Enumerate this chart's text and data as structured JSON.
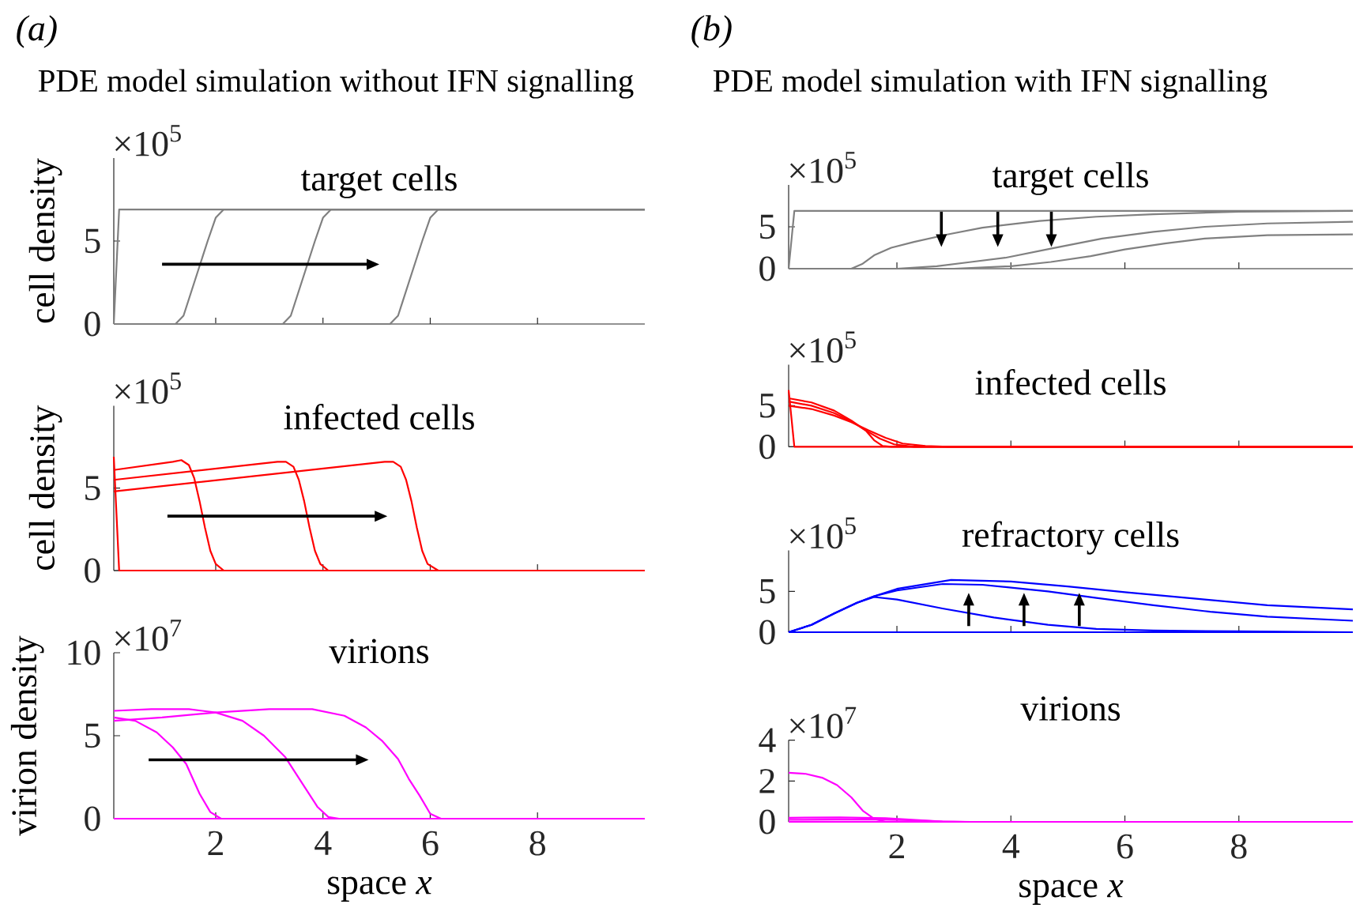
{
  "chart_data": [
    {
      "type": "line",
      "title": "target cells",
      "ylabel": "cell density",
      "annotations": [
        "×10$^{5}$",
        "(a)",
        "PDE model simulation without IFN signalling"
      ],
      "xlim": [
        0.1,
        10
      ],
      "ylim": [
        0,
        10
      ],
      "xticks": [
        2,
        4,
        6,
        8
      ],
      "yticks": [
        0,
        5
      ],
      "tick_labels": "y",
      "series": [
        {
          "color": "#808080",
          "x": [
            0.1,
            0.2,
            10
          ],
          "values": [
            0,
            6.9,
            6.9
          ]
        },
        {
          "color": "#808080",
          "x": [
            0.1,
            1.25,
            1.4,
            1.55,
            1.7,
            1.85,
            2.0,
            2.15,
            10
          ],
          "values": [
            0,
            0,
            0.5,
            2.0,
            3.5,
            5.0,
            6.4,
            6.9,
            6.9
          ]
        },
        {
          "color": "#808080",
          "x": [
            0.1,
            3.25,
            3.4,
            3.55,
            3.7,
            3.85,
            4.0,
            4.15,
            10
          ],
          "values": [
            0,
            0,
            0.5,
            2.0,
            3.5,
            5.0,
            6.4,
            6.9,
            6.9
          ]
        },
        {
          "color": "#808080",
          "x": [
            0.1,
            5.25,
            5.4,
            5.55,
            5.7,
            5.85,
            6.0,
            6.15,
            10
          ],
          "values": [
            0,
            0,
            0.5,
            2.0,
            3.5,
            5.0,
            6.4,
            6.9,
            6.9
          ]
        }
      ]
    },
    {
      "type": "line",
      "title": "infected cells",
      "ylabel": "cell density",
      "annotations": [
        "×10$^{5}$"
      ],
      "xlim": [
        0.1,
        10
      ],
      "ylim": [
        0,
        10
      ],
      "xticks": [
        2,
        4,
        6,
        8
      ],
      "yticks": [
        0,
        5
      ],
      "tick_labels": "y",
      "series": [
        {
          "color": "#ff0000",
          "x": [
            0.1,
            0.2,
            10
          ],
          "values": [
            6.9,
            0,
            0
          ]
        },
        {
          "color": "#ff0000",
          "x": [
            0.1,
            1.2,
            1.36,
            1.5,
            1.6,
            1.7,
            1.8,
            1.9,
            2.0,
            2.15,
            10
          ],
          "values": [
            6.1,
            6.6,
            6.7,
            6.4,
            5.6,
            4.2,
            2.6,
            1.2,
            0.4,
            0,
            0
          ]
        },
        {
          "color": "#ff0000",
          "x": [
            0.1,
            3.15,
            3.31,
            3.45,
            3.55,
            3.65,
            3.75,
            3.85,
            3.95,
            4.1,
            10
          ],
          "values": [
            5.5,
            6.6,
            6.6,
            6.3,
            5.5,
            4.2,
            2.6,
            1.2,
            0.4,
            0,
            0
          ]
        },
        {
          "color": "#ff0000",
          "x": [
            0.1,
            5.15,
            5.31,
            5.45,
            5.55,
            5.65,
            5.75,
            5.85,
            5.95,
            6.15,
            10
          ],
          "values": [
            4.8,
            6.6,
            6.6,
            6.3,
            5.5,
            4.2,
            2.6,
            1.2,
            0.4,
            0,
            0
          ]
        }
      ]
    },
    {
      "type": "line",
      "title": "virions",
      "xlabel": "space *x*",
      "ylabel": "virion density",
      "annotations": [
        "×10$^{7}$"
      ],
      "xlim": [
        0.1,
        10
      ],
      "ylim": [
        0,
        10
      ],
      "xticks": [
        2,
        4,
        6,
        8
      ],
      "yticks": [
        0,
        5,
        10
      ],
      "series": [
        {
          "color": "#ff00ff",
          "x": [
            0.1,
            10
          ],
          "values": [
            0,
            0
          ]
        },
        {
          "color": "#ff00ff",
          "x": [
            0.1,
            0.5,
            0.9,
            1.2,
            1.45,
            1.7,
            1.9,
            2.1,
            10
          ],
          "values": [
            6.1,
            5.9,
            5.2,
            4.3,
            3.3,
            1.5,
            0.4,
            0,
            0
          ]
        },
        {
          "color": "#ff00ff",
          "x": [
            0.1,
            0.8,
            1.5,
            2.0,
            2.5,
            2.9,
            3.3,
            3.6,
            3.9,
            4.1,
            4.3,
            10
          ],
          "values": [
            6.5,
            6.6,
            6.6,
            6.4,
            5.9,
            5.0,
            3.7,
            2.2,
            0.7,
            0.1,
            0,
            0
          ]
        },
        {
          "color": "#ff00ff",
          "x": [
            0.1,
            1,
            2,
            3,
            3.8,
            4.4,
            4.8,
            5.1,
            5.4,
            5.6,
            5.8,
            6.0,
            6.2,
            10
          ],
          "values": [
            5.9,
            6.1,
            6.4,
            6.6,
            6.6,
            6.2,
            5.5,
            4.7,
            3.6,
            2.4,
            1.4,
            0.3,
            0,
            0
          ]
        }
      ]
    },
    {
      "type": "line",
      "title": "target cells",
      "annotations": [
        "×10$^{5}$",
        "(b)",
        "PDE model simulation with IFN signalling"
      ],
      "xlim": [
        0.1,
        10
      ],
      "ylim": [
        0,
        10
      ],
      "xticks": [
        2,
        4,
        6,
        8
      ],
      "yticks": [
        0,
        5
      ],
      "tick_labels": "y",
      "series": [
        {
          "color": "#808080",
          "x": [
            0.1,
            0.2,
            10
          ],
          "values": [
            0,
            6.9,
            6.9
          ]
        },
        {
          "color": "#808080",
          "x": [
            0.1,
            1.2,
            1.4,
            1.6,
            1.9,
            2.3,
            2.9,
            3.5,
            4.5,
            5.5,
            6.5,
            8,
            10
          ],
          "values": [
            0,
            0,
            0.6,
            1.6,
            2.5,
            3.2,
            4.1,
            4.9,
            5.7,
            6.2,
            6.5,
            6.8,
            6.9
          ]
        },
        {
          "color": "#808080",
          "x": [
            0.1,
            2,
            2.7,
            3.3,
            3.9,
            4.7,
            5.6,
            6.5,
            7.4,
            8.5,
            10
          ],
          "values": [
            0,
            0,
            0.3,
            0.8,
            1.3,
            2.4,
            3.6,
            4.4,
            5.0,
            5.4,
            5.6
          ]
        },
        {
          "color": "#808080",
          "x": [
            0.1,
            3,
            4,
            4.7,
            5.4,
            6,
            6.7,
            7.4,
            8.5,
            10
          ],
          "values": [
            0,
            0,
            0.3,
            0.8,
            1.5,
            2.3,
            3.0,
            3.6,
            4.0,
            4.1
          ]
        }
      ]
    },
    {
      "type": "line",
      "title": "infected cells",
      "annotations": [
        "×10$^{5}$"
      ],
      "xlim": [
        0.1,
        10
      ],
      "ylim": [
        0,
        10
      ],
      "xticks": [
        2,
        4,
        6,
        8
      ],
      "yticks": [
        0,
        5
      ],
      "tick_labels": "y",
      "series": [
        {
          "color": "#ff0000",
          "x": [
            0.1,
            0.2,
            10
          ],
          "values": [
            6.9,
            0,
            0
          ]
        },
        {
          "color": "#ff0000",
          "x": [
            0.1,
            0.5,
            0.9,
            1.2,
            1.45,
            1.6,
            1.75,
            1.9,
            10
          ],
          "values": [
            5.9,
            5.4,
            4.4,
            3.2,
            2.0,
            0.8,
            0.1,
            0,
            0
          ]
        },
        {
          "color": "#ff0000",
          "x": [
            0.1,
            0.5,
            0.9,
            1.2,
            1.45,
            1.7,
            1.95,
            2.3,
            10
          ],
          "values": [
            5.5,
            5.0,
            4.1,
            3.1,
            2.0,
            1.0,
            0.3,
            0,
            0
          ]
        },
        {
          "color": "#ff0000",
          "x": [
            0.1,
            0.5,
            0.9,
            1.2,
            1.5,
            1.8,
            2.1,
            2.5,
            2.9,
            10
          ],
          "values": [
            5.0,
            4.6,
            3.8,
            3.0,
            2.0,
            1.1,
            0.4,
            0.1,
            0,
            0
          ]
        }
      ]
    },
    {
      "type": "line",
      "title": "refractory cells",
      "annotations": [
        "×10$^{5}$"
      ],
      "xlim": [
        0.1,
        10
      ],
      "ylim": [
        0,
        10
      ],
      "xticks": [
        2,
        4,
        6,
        8
      ],
      "yticks": [
        0,
        5
      ],
      "tick_labels": "y",
      "series": [
        {
          "color": "#0000ff",
          "x": [
            0.1,
            10
          ],
          "values": [
            0,
            0
          ]
        },
        {
          "color": "#0000ff",
          "x": [
            0.1,
            0.5,
            0.9,
            1.3,
            1.6,
            2,
            2.8,
            3.7,
            4.65,
            5.5,
            6.5,
            8,
            10
          ],
          "values": [
            0,
            0.9,
            2.3,
            3.6,
            4.3,
            4.0,
            2.9,
            1.8,
            0.9,
            0.4,
            0.2,
            0.1,
            0
          ]
        },
        {
          "color": "#0000ff",
          "x": [
            0.1,
            0.5,
            0.9,
            1.3,
            1.6,
            2,
            2.8,
            3.5,
            4.65,
            5.5,
            6.5,
            7.5,
            8.5,
            10
          ],
          "values": [
            0,
            0.9,
            2.3,
            3.6,
            4.4,
            5.1,
            5.9,
            5.8,
            5.0,
            4.2,
            3.3,
            2.5,
            1.9,
            1.4
          ]
        },
        {
          "color": "#0000ff",
          "x": [
            0.1,
            0.5,
            0.9,
            1.3,
            1.6,
            2,
            2.95,
            4,
            5,
            6,
            7.4,
            8.5,
            10
          ],
          "values": [
            0,
            0.9,
            2.3,
            3.6,
            4.4,
            5.3,
            6.4,
            6.2,
            5.6,
            4.9,
            4.0,
            3.3,
            2.8
          ]
        }
      ]
    },
    {
      "type": "line",
      "title": "virions",
      "xlabel": "space *x*",
      "annotations": [
        "×10$^{7}$"
      ],
      "xlim": [
        0.1,
        10
      ],
      "ylim": [
        0,
        4
      ],
      "xticks": [
        2,
        4,
        6,
        8
      ],
      "yticks": [
        0,
        2,
        4
      ],
      "series": [
        {
          "color": "#ff00ff",
          "x": [
            0.1,
            10
          ],
          "values": [
            0,
            0
          ]
        },
        {
          "color": "#ff00ff",
          "x": [
            0.1,
            0.4,
            0.7,
            0.95,
            1.2,
            1.4,
            1.6,
            1.8,
            10
          ],
          "values": [
            2.4,
            2.35,
            2.15,
            1.8,
            1.2,
            0.55,
            0.15,
            0,
            0
          ]
        },
        {
          "color": "#ff00ff",
          "x": [
            0.1,
            1,
            1.8,
            2.3,
            2.8,
            3.2,
            10
          ],
          "values": [
            0.2,
            0.22,
            0.18,
            0.1,
            0.02,
            0,
            0
          ]
        },
        {
          "color": "#ff00ff",
          "x": [
            0.1,
            1.5,
            2.2,
            2.8,
            3.3,
            10
          ],
          "values": [
            0.1,
            0.12,
            0.08,
            0.02,
            0,
            0
          ]
        }
      ]
    }
  ]
}
